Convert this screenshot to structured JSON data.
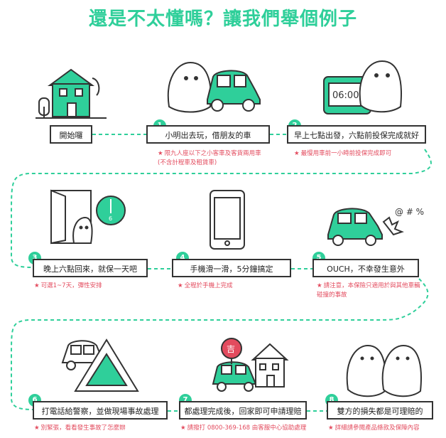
{
  "title": "還是不太懂嗎？讓我們舉個例子",
  "colors": {
    "accent": "#2fcf9a",
    "note": "#e34b5e",
    "outline": "#333333"
  },
  "clock_time": "06:00",
  "door_sign": "6",
  "bubble_text": "吉",
  "start": {
    "label": "開始囉"
  },
  "steps": [
    {
      "number": "1",
      "label": "小明出去玩，借朋友的車",
      "note": "限九人座以下之小客車及客貨兩用車 (不含計程車及租賃車)"
    },
    {
      "number": "2",
      "label": "早上七點出發，六點前投保完成就好",
      "note": "最慢用車前一小時前投保完成即可"
    },
    {
      "number": "3",
      "label": "晚上六點回來，就保一天吧",
      "note": "可選1~7天，彈性安排"
    },
    {
      "number": "4",
      "label": "手機滑一滑，5分鐘搞定",
      "note": "全程於手機上完成"
    },
    {
      "number": "5",
      "label": "OUCH，不幸發生意外",
      "note": "請注意，本保險只適用於與其他車輛碰撞的事故"
    },
    {
      "number": "6",
      "label": "打電話給警察，並做現場事故處理",
      "note": "別緊張，看看發生事故了怎麼辦"
    },
    {
      "number": "7",
      "label": "都處理完成後，回家即可申請理賠",
      "note": "請撥打 0800-369-168 由客服中心協助處理"
    },
    {
      "number": "8",
      "label": "雙方的損失都是可理賠的",
      "note": "詳細請參閱產品條款及保障內容"
    }
  ]
}
